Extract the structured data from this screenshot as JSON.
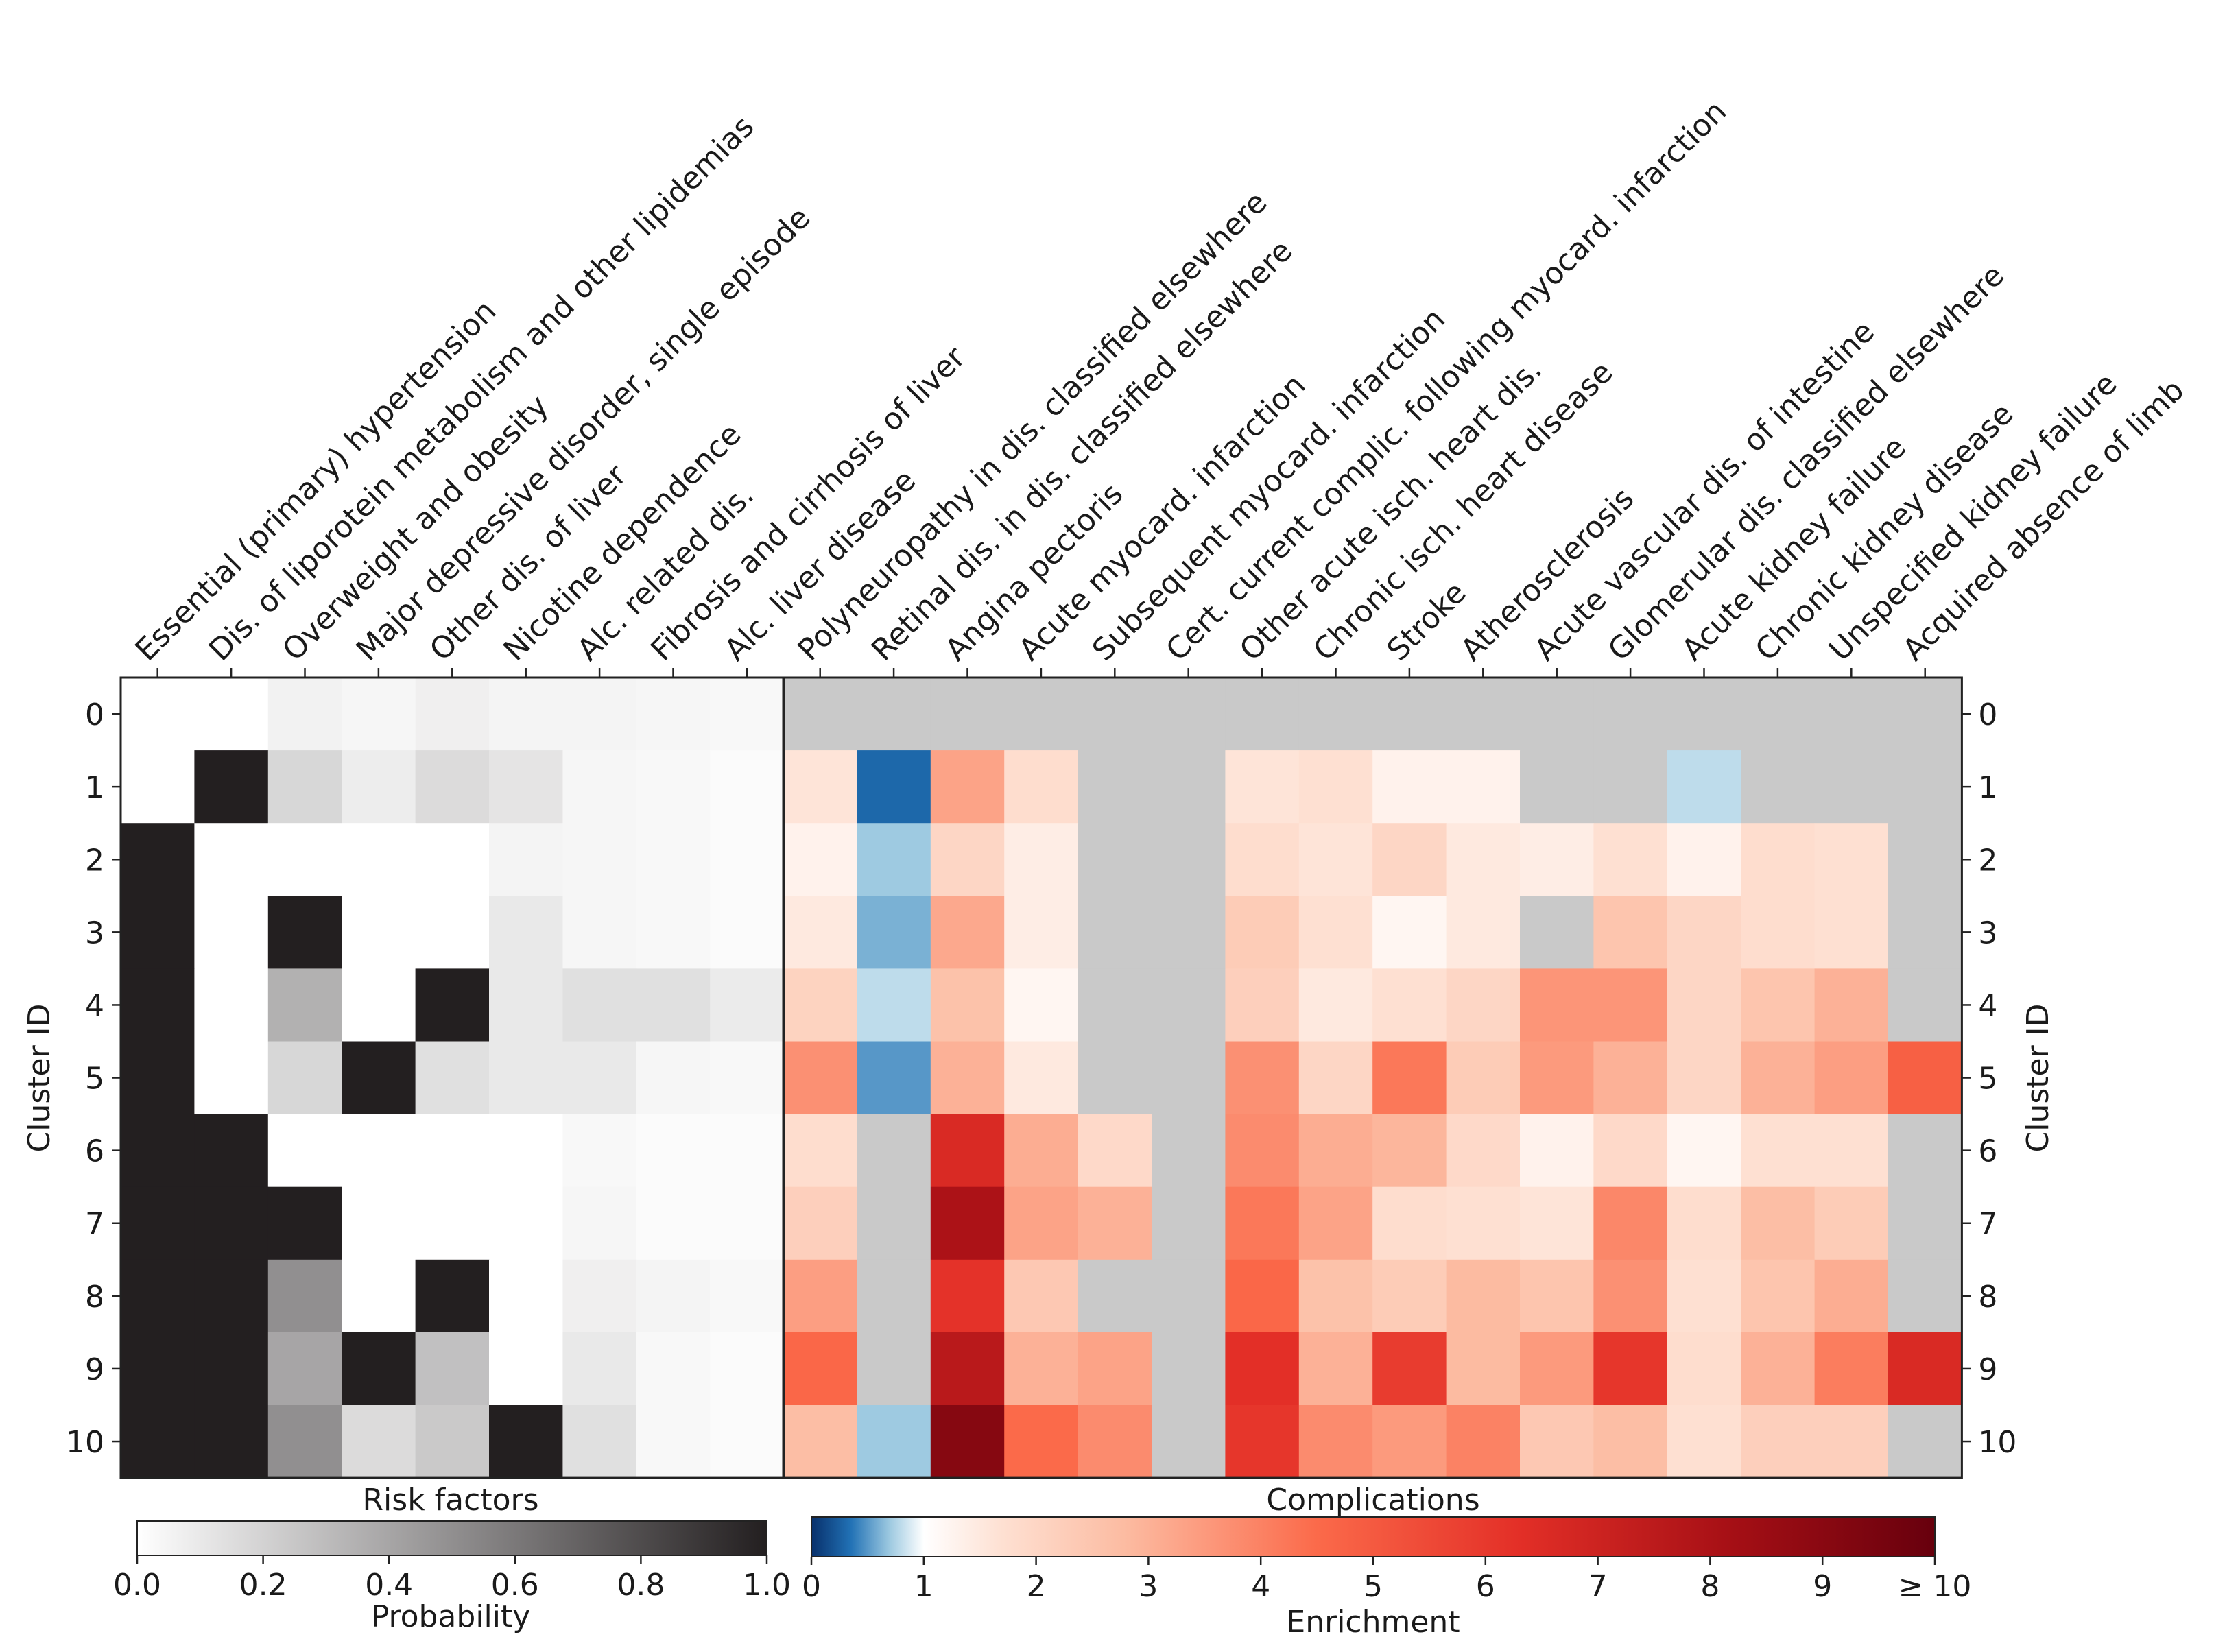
{
  "chart_data": {
    "type": "heatmap",
    "row_label": "Cluster ID",
    "rows": [
      "0",
      "1",
      "2",
      "3",
      "4",
      "5",
      "6",
      "7",
      "8",
      "9",
      "10"
    ],
    "panels": [
      {
        "name": "Risk factors",
        "colorbar": {
          "label": "Probability",
          "range": [
            0,
            1
          ],
          "ticks": [
            "0.0",
            "0.2",
            "0.4",
            "0.6",
            "0.8",
            "1.0"
          ],
          "colors": [
            "#ffffff",
            "#231f20"
          ]
        },
        "columns": [
          "Essential (primary) hypertension",
          "Dis. of liporotein metabolism and other lipidemias",
          "Overweight and obesity",
          "Major depressive disorder, single episode",
          "Other dis. of liver",
          "Nicotine dependence",
          "Alc. related dis.",
          "Fibrosis and cirrhosis of liver",
          "Alc. liver disease"
        ],
        "values": [
          [
            0.0,
            0.0,
            0.06,
            0.04,
            0.07,
            0.05,
            0.05,
            0.04,
            0.03
          ],
          [
            0.0,
            1.0,
            0.18,
            0.08,
            0.16,
            0.12,
            0.04,
            0.03,
            0.02
          ],
          [
            1.0,
            0.0,
            0.0,
            0.0,
            0.0,
            0.05,
            0.04,
            0.03,
            0.02
          ],
          [
            1.0,
            0.0,
            1.0,
            0.0,
            0.0,
            0.1,
            0.04,
            0.03,
            0.02
          ],
          [
            1.0,
            0.0,
            0.35,
            0.0,
            1.0,
            0.1,
            0.14,
            0.14,
            0.09
          ],
          [
            1.0,
            0.0,
            0.18,
            1.0,
            0.14,
            0.1,
            0.1,
            0.04,
            0.03
          ],
          [
            1.0,
            1.0,
            0.0,
            0.0,
            0.0,
            0.0,
            0.03,
            0.02,
            0.02
          ],
          [
            1.0,
            1.0,
            1.0,
            0.0,
            0.0,
            0.0,
            0.04,
            0.02,
            0.02
          ],
          [
            1.0,
            1.0,
            0.5,
            0.0,
            1.0,
            0.0,
            0.07,
            0.05,
            0.03
          ],
          [
            1.0,
            1.0,
            0.4,
            1.0,
            0.28,
            0.0,
            0.1,
            0.03,
            0.02
          ],
          [
            1.0,
            1.0,
            0.5,
            0.16,
            0.24,
            1.0,
            0.14,
            0.03,
            0.02
          ]
        ]
      },
      {
        "name": "Complications",
        "colorbar": {
          "label": "Enrichment",
          "range": [
            0,
            10
          ],
          "ticks": [
            "0",
            "1",
            "2",
            "3",
            "4",
            "5",
            "6",
            "7",
            "8",
            "9",
            "≥ 10"
          ],
          "colors": [
            "#08306b",
            "#2171b5",
            "#9ecae1",
            "#ffffff",
            "#fee0d2",
            "#fcbba1",
            "#fb6a4a",
            "#e32f27",
            "#a50f15",
            "#67000d"
          ]
        },
        "na_color": "#c9c9c9",
        "columns": [
          "Polyneuropathy in dis. classified elsewhere",
          "Retinal dis. in dis. classified elsewhere",
          "Angina pectoris",
          "Acute myocard. infarction",
          "Subsequent myocard. infarction",
          "Cert. current complic. following myocard. infarction",
          "Other acute isch. heart dis.",
          "Chronic isch. heart disease",
          "Stroke",
          "Atherosclerosis",
          "Acute vascular dis. of intestine",
          "Glomerular dis. classified elsewhere",
          "Acute kidney failure",
          "Chronic kidney disease",
          "Unspecified kidney failure",
          "Acquired absence of limb"
        ],
        "values": [
          [
            null,
            null,
            null,
            null,
            null,
            null,
            null,
            null,
            null,
            null,
            null,
            null,
            null,
            null,
            null,
            null
          ],
          [
            1.6,
            0.3,
            3.3,
            1.8,
            null,
            null,
            1.6,
            1.7,
            1.3,
            1.3,
            null,
            null,
            0.8,
            null,
            null,
            null
          ],
          [
            1.3,
            0.7,
            2.0,
            1.4,
            null,
            null,
            1.8,
            1.6,
            2.0,
            1.5,
            1.4,
            1.7,
            1.3,
            1.8,
            1.7,
            null
          ],
          [
            1.5,
            0.6,
            3.2,
            1.4,
            null,
            null,
            2.3,
            1.7,
            1.2,
            1.5,
            null,
            2.5,
            2.0,
            1.8,
            1.7,
            null
          ],
          [
            2.1,
            0.8,
            2.6,
            1.2,
            null,
            null,
            2.2,
            1.5,
            1.7,
            2.0,
            3.6,
            3.6,
            2.0,
            2.5,
            3.0,
            null
          ],
          [
            3.7,
            0.5,
            3.0,
            1.5,
            null,
            null,
            3.7,
            2.0,
            4.2,
            2.3,
            3.5,
            3.0,
            2.0,
            3.0,
            3.4,
            4.8
          ],
          [
            1.8,
            null,
            6.6,
            3.1,
            1.9,
            null,
            3.8,
            3.1,
            2.9,
            1.9,
            1.3,
            1.9,
            1.2,
            1.7,
            1.7,
            null
          ],
          [
            2.2,
            null,
            8.0,
            3.3,
            3.0,
            null,
            4.2,
            3.3,
            1.8,
            1.7,
            1.6,
            3.9,
            1.8,
            2.7,
            2.3,
            null
          ],
          [
            3.4,
            null,
            6.2,
            2.4,
            null,
            null,
            4.6,
            2.6,
            2.3,
            2.8,
            2.5,
            3.7,
            1.7,
            2.5,
            3.1,
            null
          ],
          [
            4.6,
            null,
            7.6,
            3.0,
            3.3,
            null,
            6.3,
            3.0,
            5.9,
            2.8,
            3.5,
            6.1,
            1.8,
            3.0,
            4.1,
            6.6
          ],
          [
            2.7,
            0.7,
            9.1,
            4.5,
            3.8,
            null,
            6.1,
            3.8,
            3.5,
            4.0,
            2.4,
            2.7,
            1.7,
            2.2,
            2.2,
            null
          ]
        ]
      }
    ]
  }
}
